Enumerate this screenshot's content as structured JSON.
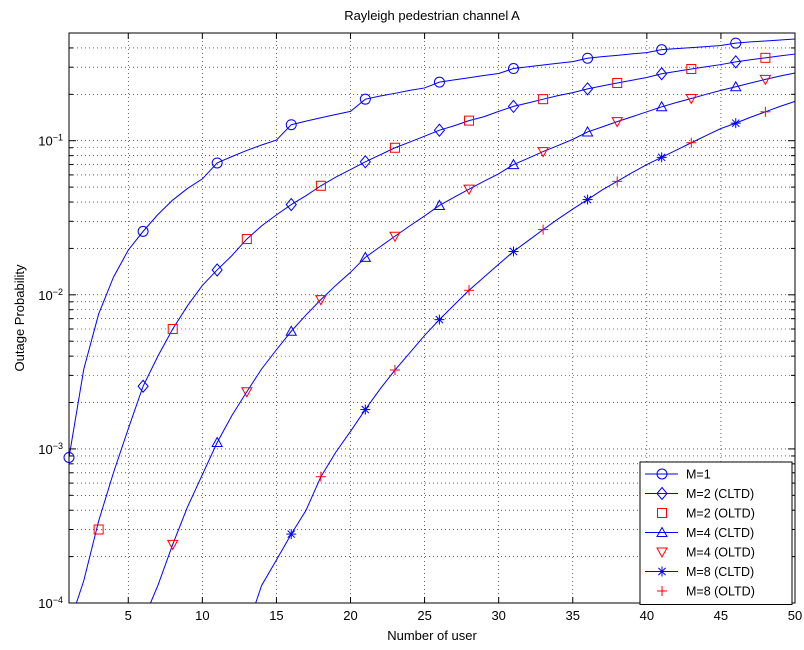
{
  "chart_data": {
    "type": "line",
    "title": "Rayleigh pedestrian channel A",
    "xlabel": "Number of user",
    "ylabel": "Outage Probability",
    "xlim": [
      1,
      50
    ],
    "ylim": [
      0.0001,
      0.5
    ],
    "yscale": "log",
    "grid": true,
    "legend_position": "bottom-right",
    "x_ticks": [
      5,
      10,
      15,
      20,
      25,
      30,
      35,
      40,
      45,
      50
    ],
    "y_ticks": [
      {
        "value": 0.0001,
        "base": "10",
        "exp": "−4"
      },
      {
        "value": 0.001,
        "base": "10",
        "exp": "−3"
      },
      {
        "value": 0.01,
        "base": "10",
        "exp": "−2"
      },
      {
        "value": 0.1,
        "base": "10",
        "exp": "−1"
      }
    ],
    "curves": [
      {
        "color": "#0000ff",
        "x": [
          1,
          2,
          3,
          4,
          5,
          6,
          7,
          8,
          9,
          10,
          11,
          12,
          13,
          14,
          15,
          16,
          17,
          18,
          19,
          20,
          21,
          22,
          23,
          24,
          25,
          26,
          27,
          28,
          29,
          30,
          31,
          32,
          33,
          34,
          35,
          36,
          37,
          38,
          39,
          40,
          41,
          42,
          43,
          44,
          45,
          46,
          47,
          48,
          49,
          50
        ],
        "y": [
          0.00088,
          0.0033,
          0.0075,
          0.013,
          0.0195,
          0.0258,
          0.0332,
          0.0412,
          0.049,
          0.0565,
          0.0717,
          0.079,
          0.0865,
          0.0938,
          0.101,
          0.127,
          0.134,
          0.141,
          0.148,
          0.155,
          0.186,
          0.195,
          0.203,
          0.212,
          0.22,
          0.24,
          0.248,
          0.256,
          0.265,
          0.273,
          0.294,
          0.302,
          0.31,
          0.318,
          0.326,
          0.343,
          0.351,
          0.358,
          0.366,
          0.373,
          0.39,
          0.396,
          0.402,
          0.408,
          0.415,
          0.43,
          0.438,
          0.444,
          0.45,
          0.457
        ]
      },
      {
        "color": "#0000ff",
        "x": [
          1.5,
          2,
          3,
          4,
          5,
          6,
          7,
          8,
          9,
          10,
          11,
          12,
          13,
          14,
          15,
          16,
          17,
          18,
          19,
          20,
          21,
          22,
          23,
          24,
          25,
          26,
          27,
          28,
          29,
          30,
          31,
          32,
          33,
          34,
          35,
          36,
          37,
          38,
          39,
          40,
          41,
          42,
          43,
          44,
          45,
          46,
          47,
          48,
          49,
          50
        ],
        "y": [
          0.0001,
          0.00014,
          0.00034,
          0.0007,
          0.00135,
          0.00255,
          0.004,
          0.006,
          0.0085,
          0.0115,
          0.0145,
          0.018,
          0.023,
          0.028,
          0.033,
          0.0385,
          0.044,
          0.051,
          0.058,
          0.065,
          0.073,
          0.081,
          0.09,
          0.098,
          0.107,
          0.117,
          0.125,
          0.135,
          0.143,
          0.155,
          0.167,
          0.176,
          0.186,
          0.196,
          0.205,
          0.217,
          0.227,
          0.237,
          0.247,
          0.257,
          0.272,
          0.282,
          0.292,
          0.302,
          0.312,
          0.325,
          0.335,
          0.345,
          0.355,
          0.365
        ]
      },
      {
        "color": "#0000ff",
        "x": [
          6.5,
          7,
          8,
          9,
          10,
          11,
          12,
          13,
          14,
          15,
          16,
          17,
          18,
          19,
          20,
          21,
          22,
          23,
          24,
          25,
          26,
          27,
          28,
          29,
          30,
          31,
          32,
          33,
          34,
          35,
          36,
          37,
          38,
          39,
          40,
          41,
          42,
          43,
          44,
          45,
          46,
          47,
          48,
          49,
          50
        ],
        "y": [
          0.0001,
          0.00013,
          0.00024,
          0.00042,
          0.00068,
          0.0011,
          0.00165,
          0.00235,
          0.0033,
          0.0044,
          0.0058,
          0.0074,
          0.0093,
          0.0115,
          0.014,
          0.0175,
          0.0205,
          0.024,
          0.028,
          0.0325,
          0.038,
          0.043,
          0.0485,
          0.0545,
          0.061,
          0.07,
          0.077,
          0.085,
          0.093,
          0.102,
          0.114,
          0.123,
          0.133,
          0.143,
          0.154,
          0.166,
          0.177,
          0.188,
          0.2,
          0.212,
          0.224,
          0.237,
          0.25,
          0.263,
          0.275
        ]
      },
      {
        "color": "#0000ff",
        "x": [
          13.6,
          14,
          15,
          16,
          17,
          18,
          19,
          20,
          21,
          22,
          23,
          24,
          25,
          26,
          27,
          28,
          29,
          30,
          31,
          32,
          33,
          34,
          35,
          36,
          37,
          38,
          39,
          40,
          41,
          42,
          43,
          44,
          45,
          46,
          47,
          48,
          49,
          50
        ],
        "y": [
          0.0001,
          0.00013,
          0.00019,
          0.00028,
          0.0004,
          0.00066,
          0.00095,
          0.0013,
          0.0018,
          0.00245,
          0.00325,
          0.0042,
          0.00545,
          0.0069,
          0.0086,
          0.0107,
          0.013,
          0.0158,
          0.0191,
          0.0225,
          0.0265,
          0.031,
          0.036,
          0.0415,
          0.048,
          0.0545,
          0.062,
          0.07,
          0.078,
          0.087,
          0.097,
          0.108,
          0.12,
          0.13,
          0.142,
          0.154,
          0.167,
          0.18
        ]
      }
    ],
    "series": [
      {
        "name": "M=1",
        "marker": "circle",
        "color": "#0000ff",
        "x": [
          1,
          6,
          11,
          16,
          21,
          26,
          31,
          36,
          41,
          46
        ],
        "y": [
          0.00088,
          0.0258,
          0.0717,
          0.127,
          0.186,
          0.24,
          0.294,
          0.343,
          0.39,
          0.43
        ]
      },
      {
        "name": "M=2 (CLTD)",
        "marker": "diamond",
        "color": "#0000ff",
        "x": [
          6,
          11,
          16,
          21,
          26,
          31,
          36,
          41,
          46
        ],
        "y": [
          0.00255,
          0.0145,
          0.0385,
          0.073,
          0.117,
          0.167,
          0.217,
          0.272,
          0.325
        ]
      },
      {
        "name": "M=2 (OLTD)",
        "marker": "square",
        "color": "#ff0000",
        "x": [
          3,
          8,
          13,
          18,
          23,
          28,
          33,
          38,
          43,
          48
        ],
        "y": [
          0.0003,
          0.006,
          0.023,
          0.051,
          0.09,
          0.135,
          0.186,
          0.237,
          0.292,
          0.345
        ]
      },
      {
        "name": "M=4 (CLTD)",
        "marker": "triangle-up",
        "color": "#0000ff",
        "x": [
          11,
          16,
          21,
          26,
          31,
          36,
          41,
          46
        ],
        "y": [
          0.0011,
          0.0058,
          0.0175,
          0.038,
          0.07,
          0.114,
          0.166,
          0.224
        ]
      },
      {
        "name": "M=4 (OLTD)",
        "marker": "triangle-down",
        "color": "#ff0000",
        "x": [
          8,
          13,
          18,
          23,
          28,
          33,
          38,
          43,
          48
        ],
        "y": [
          0.00024,
          0.00235,
          0.0093,
          0.024,
          0.0485,
          0.085,
          0.133,
          0.188,
          0.25
        ]
      },
      {
        "name": "M=8 (CLTD)",
        "marker": "asterisk",
        "color": "#0000ff",
        "x": [
          16,
          21,
          26,
          31,
          36,
          41,
          46
        ],
        "y": [
          0.00028,
          0.0018,
          0.0069,
          0.0191,
          0.0415,
          0.078,
          0.13
        ]
      },
      {
        "name": "M=8 (OLTD)",
        "marker": "plus",
        "color": "#ff0000",
        "x": [
          18,
          23,
          28,
          33,
          38,
          43,
          48
        ],
        "y": [
          0.00066,
          0.00325,
          0.0107,
          0.0265,
          0.0545,
          0.097,
          0.154
        ]
      }
    ]
  }
}
